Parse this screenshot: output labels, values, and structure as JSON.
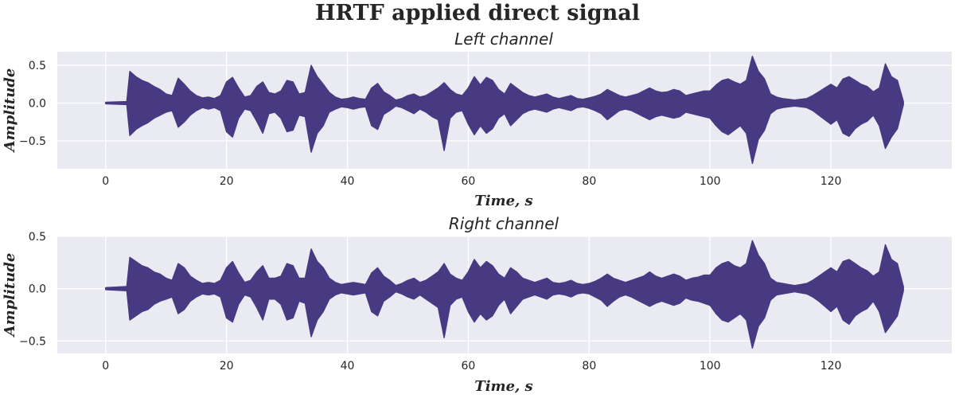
{
  "figure": {
    "title": "HRTF applied direct signal"
  },
  "colors": {
    "signal": "#483A82",
    "background": "#EAEAF2",
    "grid": "#FFFFFF"
  },
  "chart_data": [
    {
      "type": "line",
      "title": "Left channel",
      "xlabel": "Time, s",
      "ylabel": "Amplitude",
      "xlim": [
        -8,
        140
      ],
      "ylim": [
        -0.87,
        0.68
      ],
      "xticks": [
        0,
        20,
        40,
        60,
        80,
        100,
        120
      ],
      "xtick_labels": [
        "0",
        "20",
        "40",
        "60",
        "80",
        "100",
        "120"
      ],
      "yticks": [
        -0.5,
        0.0,
        0.5
      ],
      "ytick_labels": [
        "−0.5",
        "0.0",
        "0.5"
      ],
      "grid": true,
      "series": [
        {
          "x": [
            0,
            3.5,
            4,
            5,
            6,
            7,
            8,
            9,
            10,
            11,
            12,
            13,
            14,
            15,
            16,
            17,
            18,
            19,
            20,
            21,
            22,
            23,
            24,
            25,
            26,
            27,
            28,
            29,
            30,
            31,
            32,
            33,
            34,
            35,
            36,
            37,
            38,
            39,
            40,
            41,
            42,
            43,
            44,
            45,
            46,
            47,
            48,
            49,
            50,
            51,
            52,
            53,
            54,
            55,
            56,
            57,
            58,
            59,
            60,
            61,
            62,
            63,
            64,
            65,
            66,
            67,
            68,
            69,
            70,
            71,
            72,
            73,
            74,
            75,
            76,
            77,
            78,
            79,
            80,
            81,
            82,
            83,
            84,
            85,
            86,
            87,
            88,
            89,
            90,
            91,
            92,
            93,
            94,
            95,
            96,
            97,
            98,
            99,
            100,
            101,
            102,
            103,
            104,
            105,
            106,
            107,
            108,
            109,
            110,
            111,
            112,
            113,
            114,
            115,
            116,
            117,
            118,
            119,
            120,
            121,
            122,
            123,
            124,
            125,
            126,
            127,
            128,
            129,
            130,
            131,
            132
          ],
          "upper": [
            0.01,
            0.02,
            0.42,
            0.35,
            0.3,
            0.27,
            0.22,
            0.18,
            0.12,
            0.1,
            0.33,
            0.25,
            0.16,
            0.1,
            0.07,
            0.08,
            0.06,
            0.1,
            0.28,
            0.34,
            0.2,
            0.08,
            0.1,
            0.22,
            0.28,
            0.14,
            0.12,
            0.16,
            0.3,
            0.28,
            0.12,
            0.14,
            0.5,
            0.35,
            0.25,
            0.14,
            0.08,
            0.05,
            0.06,
            0.08,
            0.06,
            0.05,
            0.2,
            0.26,
            0.15,
            0.1,
            0.04,
            0.06,
            0.1,
            0.12,
            0.08,
            0.1,
            0.15,
            0.2,
            0.27,
            0.18,
            0.12,
            0.1,
            0.2,
            0.35,
            0.24,
            0.34,
            0.3,
            0.18,
            0.12,
            0.26,
            0.2,
            0.14,
            0.1,
            0.08,
            0.1,
            0.12,
            0.08,
            0.06,
            0.08,
            0.1,
            0.06,
            0.05,
            0.07,
            0.09,
            0.12,
            0.18,
            0.14,
            0.1,
            0.08,
            0.1,
            0.12,
            0.16,
            0.2,
            0.16,
            0.14,
            0.15,
            0.18,
            0.16,
            0.1,
            0.12,
            0.14,
            0.16,
            0.16,
            0.24,
            0.3,
            0.32,
            0.28,
            0.25,
            0.3,
            0.62,
            0.42,
            0.32,
            0.12,
            0.08,
            0.06,
            0.05,
            0.04,
            0.05,
            0.06,
            0.1,
            0.15,
            0.2,
            0.25,
            0.2,
            0.32,
            0.35,
            0.3,
            0.25,
            0.22,
            0.15,
            0.2,
            0.52,
            0.35,
            0.3,
            0.02
          ],
          "lower": [
            -0.01,
            -0.02,
            -0.43,
            -0.35,
            -0.3,
            -0.26,
            -0.2,
            -0.16,
            -0.12,
            -0.1,
            -0.32,
            -0.25,
            -0.16,
            -0.1,
            -0.06,
            -0.08,
            -0.06,
            -0.1,
            -0.38,
            -0.45,
            -0.2,
            -0.08,
            -0.1,
            -0.24,
            -0.4,
            -0.14,
            -0.12,
            -0.2,
            -0.38,
            -0.36,
            -0.16,
            -0.18,
            -0.65,
            -0.4,
            -0.3,
            -0.12,
            -0.08,
            -0.05,
            -0.06,
            -0.08,
            -0.06,
            -0.05,
            -0.3,
            -0.35,
            -0.15,
            -0.1,
            -0.04,
            -0.06,
            -0.1,
            -0.14,
            -0.08,
            -0.12,
            -0.18,
            -0.22,
            -0.63,
            -0.2,
            -0.12,
            -0.1,
            -0.28,
            -0.42,
            -0.3,
            -0.4,
            -0.34,
            -0.2,
            -0.14,
            -0.3,
            -0.22,
            -0.14,
            -0.1,
            -0.08,
            -0.1,
            -0.12,
            -0.08,
            -0.06,
            -0.08,
            -0.1,
            -0.06,
            -0.05,
            -0.07,
            -0.1,
            -0.14,
            -0.22,
            -0.16,
            -0.1,
            -0.08,
            -0.1,
            -0.14,
            -0.18,
            -0.22,
            -0.18,
            -0.16,
            -0.18,
            -0.2,
            -0.18,
            -0.12,
            -0.14,
            -0.16,
            -0.18,
            -0.2,
            -0.3,
            -0.38,
            -0.42,
            -0.36,
            -0.3,
            -0.4,
            -0.8,
            -0.48,
            -0.36,
            -0.14,
            -0.08,
            -0.06,
            -0.05,
            -0.04,
            -0.05,
            -0.06,
            -0.1,
            -0.16,
            -0.22,
            -0.28,
            -0.22,
            -0.4,
            -0.44,
            -0.34,
            -0.28,
            -0.24,
            -0.16,
            -0.3,
            -0.6,
            -0.45,
            -0.34,
            -0.02
          ]
        }
      ]
    },
    {
      "type": "line",
      "title": "Right channel",
      "xlabel": "Time, s",
      "ylabel": "Amplitude",
      "xlim": [
        -8,
        140
      ],
      "ylim": [
        -0.62,
        0.5
      ],
      "xticks": [
        0,
        20,
        40,
        60,
        80,
        100,
        120
      ],
      "xtick_labels": [
        "0",
        "20",
        "40",
        "60",
        "80",
        "100",
        "120"
      ],
      "yticks": [
        -0.5,
        0.0,
        0.5
      ],
      "ytick_labels": [
        "−0.5",
        "0.0",
        "0.5"
      ],
      "grid": true,
      "series": [
        {
          "x": [
            0,
            3.5,
            4,
            5,
            6,
            7,
            8,
            9,
            10,
            11,
            12,
            13,
            14,
            15,
            16,
            17,
            18,
            19,
            20,
            21,
            22,
            23,
            24,
            25,
            26,
            27,
            28,
            29,
            30,
            31,
            32,
            33,
            34,
            35,
            36,
            37,
            38,
            39,
            40,
            41,
            42,
            43,
            44,
            45,
            46,
            47,
            48,
            49,
            50,
            51,
            52,
            53,
            54,
            55,
            56,
            57,
            58,
            59,
            60,
            61,
            62,
            63,
            64,
            65,
            66,
            67,
            68,
            69,
            70,
            71,
            72,
            73,
            74,
            75,
            76,
            77,
            78,
            79,
            80,
            81,
            82,
            83,
            84,
            85,
            86,
            87,
            88,
            89,
            90,
            91,
            92,
            93,
            94,
            95,
            96,
            97,
            98,
            99,
            100,
            101,
            102,
            103,
            104,
            105,
            106,
            107,
            108,
            109,
            110,
            111,
            112,
            113,
            114,
            115,
            116,
            117,
            118,
            119,
            120,
            121,
            122,
            123,
            124,
            125,
            126,
            127,
            128,
            129,
            130,
            131,
            132
          ],
          "upper": [
            0.01,
            0.02,
            0.3,
            0.26,
            0.22,
            0.2,
            0.16,
            0.14,
            0.1,
            0.08,
            0.24,
            0.2,
            0.12,
            0.08,
            0.05,
            0.06,
            0.05,
            0.08,
            0.2,
            0.26,
            0.15,
            0.06,
            0.08,
            0.16,
            0.22,
            0.1,
            0.1,
            0.12,
            0.24,
            0.22,
            0.1,
            0.1,
            0.38,
            0.26,
            0.2,
            0.1,
            0.06,
            0.04,
            0.05,
            0.06,
            0.05,
            0.04,
            0.15,
            0.2,
            0.12,
            0.08,
            0.03,
            0.05,
            0.08,
            0.1,
            0.06,
            0.08,
            0.12,
            0.16,
            0.24,
            0.14,
            0.1,
            0.08,
            0.16,
            0.28,
            0.2,
            0.26,
            0.22,
            0.14,
            0.1,
            0.2,
            0.16,
            0.1,
            0.08,
            0.06,
            0.08,
            0.1,
            0.06,
            0.05,
            0.06,
            0.08,
            0.05,
            0.04,
            0.05,
            0.07,
            0.1,
            0.14,
            0.1,
            0.08,
            0.06,
            0.08,
            0.1,
            0.12,
            0.16,
            0.12,
            0.1,
            0.12,
            0.14,
            0.12,
            0.08,
            0.1,
            0.11,
            0.13,
            0.13,
            0.2,
            0.24,
            0.26,
            0.22,
            0.2,
            0.24,
            0.46,
            0.32,
            0.24,
            0.1,
            0.06,
            0.05,
            0.04,
            0.03,
            0.04,
            0.05,
            0.08,
            0.12,
            0.16,
            0.2,
            0.16,
            0.26,
            0.28,
            0.24,
            0.2,
            0.17,
            0.12,
            0.16,
            0.42,
            0.28,
            0.24,
            0.02
          ],
          "lower": [
            -0.01,
            -0.02,
            -0.3,
            -0.26,
            -0.22,
            -0.2,
            -0.15,
            -0.12,
            -0.1,
            -0.08,
            -0.24,
            -0.2,
            -0.12,
            -0.08,
            -0.05,
            -0.06,
            -0.05,
            -0.08,
            -0.28,
            -0.32,
            -0.15,
            -0.06,
            -0.08,
            -0.18,
            -0.3,
            -0.1,
            -0.1,
            -0.15,
            -0.3,
            -0.28,
            -0.12,
            -0.14,
            -0.46,
            -0.3,
            -0.22,
            -0.1,
            -0.06,
            -0.04,
            -0.05,
            -0.06,
            -0.05,
            -0.04,
            -0.22,
            -0.26,
            -0.12,
            -0.08,
            -0.03,
            -0.05,
            -0.08,
            -0.1,
            -0.06,
            -0.1,
            -0.14,
            -0.18,
            -0.47,
            -0.16,
            -0.1,
            -0.08,
            -0.22,
            -0.32,
            -0.24,
            -0.3,
            -0.26,
            -0.16,
            -0.1,
            -0.24,
            -0.17,
            -0.1,
            -0.08,
            -0.06,
            -0.08,
            -0.1,
            -0.06,
            -0.05,
            -0.06,
            -0.08,
            -0.05,
            -0.04,
            -0.05,
            -0.08,
            -0.11,
            -0.17,
            -0.12,
            -0.08,
            -0.06,
            -0.08,
            -0.11,
            -0.14,
            -0.17,
            -0.14,
            -0.12,
            -0.14,
            -0.16,
            -0.14,
            -0.09,
            -0.11,
            -0.12,
            -0.14,
            -0.16,
            -0.24,
            -0.3,
            -0.32,
            -0.28,
            -0.24,
            -0.3,
            -0.57,
            -0.36,
            -0.28,
            -0.11,
            -0.06,
            -0.05,
            -0.04,
            -0.03,
            -0.04,
            -0.05,
            -0.08,
            -0.12,
            -0.17,
            -0.22,
            -0.17,
            -0.3,
            -0.34,
            -0.26,
            -0.22,
            -0.19,
            -0.12,
            -0.22,
            -0.42,
            -0.34,
            -0.26,
            -0.02
          ]
        }
      ]
    }
  ]
}
